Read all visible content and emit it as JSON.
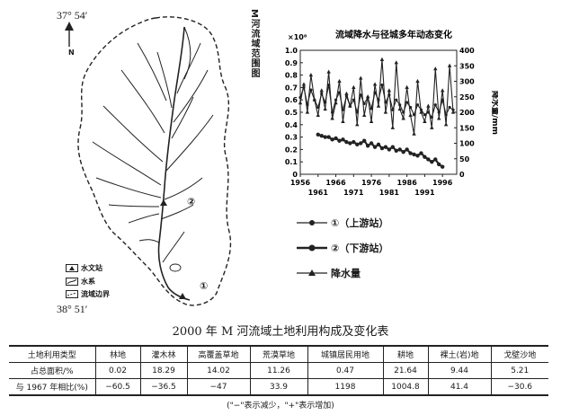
{
  "map": {
    "coord_top": "37° 54′",
    "coord_bottom": "38° 51′",
    "north_label": "N",
    "vertical_title": "M河流域范围图",
    "station_labels": [
      "①",
      "②"
    ],
    "legend": [
      {
        "icon": "hydro-station-icon",
        "label": "水文站"
      },
      {
        "icon": "river-system-icon",
        "label": "水系"
      },
      {
        "icon": "basin-boundary-icon",
        "label": "流域边界"
      }
    ]
  },
  "chart_data": {
    "type": "line",
    "title": "流域降水与径城多年动态变化",
    "x_ticks_top": [
      "1956",
      "1966",
      "1976",
      "1986",
      "1996"
    ],
    "x_ticks_bottom": [
      "1961",
      "1971",
      "1981",
      "1991"
    ],
    "xlim": [
      1956,
      2000
    ],
    "ylabel_left": "径流量/m³",
    "ylabel_left_multiplier": "×10⁸",
    "ylim_left": [
      0,
      1.0
    ],
    "y_ticks_left": [
      "0",
      "0.1",
      "0.2",
      "0.3",
      "0.4",
      "0.5",
      "0.6",
      "0.7",
      "0.8",
      "0.9",
      "1.0"
    ],
    "ylabel_right": "降水量/mm",
    "ylim_right": [
      0,
      400
    ],
    "y_ticks_right": [
      "0",
      "50",
      "100",
      "150",
      "200",
      "250",
      "300",
      "350",
      "400"
    ],
    "series": [
      {
        "name": "①（上游站）",
        "axis": "left",
        "marker": "circle",
        "x": [
          1956,
          1957,
          1958,
          1959,
          1960,
          1961,
          1962,
          1963,
          1964,
          1965,
          1966,
          1967,
          1968,
          1969,
          1970,
          1971,
          1972,
          1973,
          1974,
          1975,
          1976,
          1977,
          1978,
          1979,
          1980,
          1981,
          1982,
          1983,
          1984,
          1985,
          1986,
          1987,
          1988,
          1989,
          1990,
          1991,
          1992,
          1993,
          1994,
          1995,
          1996,
          1997,
          1998,
          1999
        ],
        "values": [
          0.62,
          0.7,
          0.56,
          0.68,
          0.6,
          0.54,
          0.65,
          0.58,
          0.72,
          0.5,
          0.6,
          0.66,
          0.52,
          0.63,
          0.55,
          0.6,
          0.5,
          0.64,
          0.57,
          0.62,
          0.53,
          0.66,
          0.6,
          0.72,
          0.58,
          0.64,
          0.52,
          0.6,
          0.56,
          0.5,
          0.58,
          0.54,
          0.48,
          0.56,
          0.52,
          0.48,
          0.5,
          0.46,
          0.56,
          0.5,
          0.6,
          0.48,
          0.54,
          0.52
        ]
      },
      {
        "name": "②（下游站）",
        "axis": "left",
        "marker": "circle-filled",
        "x": [
          1961,
          1962,
          1963,
          1964,
          1965,
          1966,
          1967,
          1968,
          1969,
          1970,
          1971,
          1972,
          1973,
          1974,
          1975,
          1976,
          1977,
          1978,
          1979,
          1980,
          1981,
          1982,
          1983,
          1984,
          1985,
          1986,
          1987,
          1988,
          1989,
          1990,
          1991,
          1992,
          1993,
          1994,
          1995,
          1996
        ],
        "values": [
          0.32,
          0.31,
          0.3,
          0.3,
          0.28,
          0.29,
          0.27,
          0.28,
          0.26,
          0.25,
          0.26,
          0.24,
          0.25,
          0.27,
          0.23,
          0.25,
          0.22,
          0.24,
          0.21,
          0.22,
          0.2,
          0.22,
          0.19,
          0.2,
          0.18,
          0.2,
          0.17,
          0.16,
          0.15,
          0.17,
          0.14,
          0.12,
          0.1,
          0.12,
          0.08,
          0.06
        ]
      },
      {
        "name": "降水量",
        "axis": "right",
        "marker": "triangle",
        "x": [
          1956,
          1957,
          1958,
          1959,
          1960,
          1961,
          1962,
          1963,
          1964,
          1965,
          1966,
          1967,
          1968,
          1969,
          1970,
          1971,
          1972,
          1973,
          1974,
          1975,
          1976,
          1977,
          1978,
          1979,
          1980,
          1981,
          1982,
          1983,
          1984,
          1985,
          1986,
          1987,
          1988,
          1989,
          1990,
          1991,
          1992,
          1993,
          1994,
          1995,
          1996,
          1997,
          1998,
          1999
        ],
        "values": [
          230,
          290,
          200,
          320,
          240,
          190,
          270,
          210,
          330,
          180,
          230,
          300,
          170,
          260,
          220,
          280,
          160,
          310,
          190,
          250,
          170,
          290,
          220,
          370,
          200,
          270,
          150,
          360,
          210,
          180,
          280,
          190,
          130,
          300,
          200,
          170,
          220,
          150,
          340,
          180,
          270,
          160,
          350,
          200
        ]
      }
    ],
    "legend_placement": "below"
  },
  "table": {
    "title": "2000 年 M 河流域土地利用构成及变化表",
    "header": [
      "土地利用类型",
      "林地",
      "灌木林",
      "高覆盖草地",
      "荒漠草地",
      "城镇居民用地",
      "耕地",
      "裸土(岩)地",
      "戈壁沙地"
    ],
    "rows": [
      [
        "占总面积/%",
        "0.02",
        "18.29",
        "14.02",
        "11.26",
        "0.47",
        "21.64",
        "9.44",
        "5.21"
      ],
      [
        "与 1967 年相比(%)",
        "−60.5",
        "−36.5",
        "−47",
        "33.9",
        "1198",
        "1004.8",
        "41.4",
        "−30.6"
      ]
    ],
    "note": "(\"−\"表示减少，\"+\"表示增加)"
  }
}
